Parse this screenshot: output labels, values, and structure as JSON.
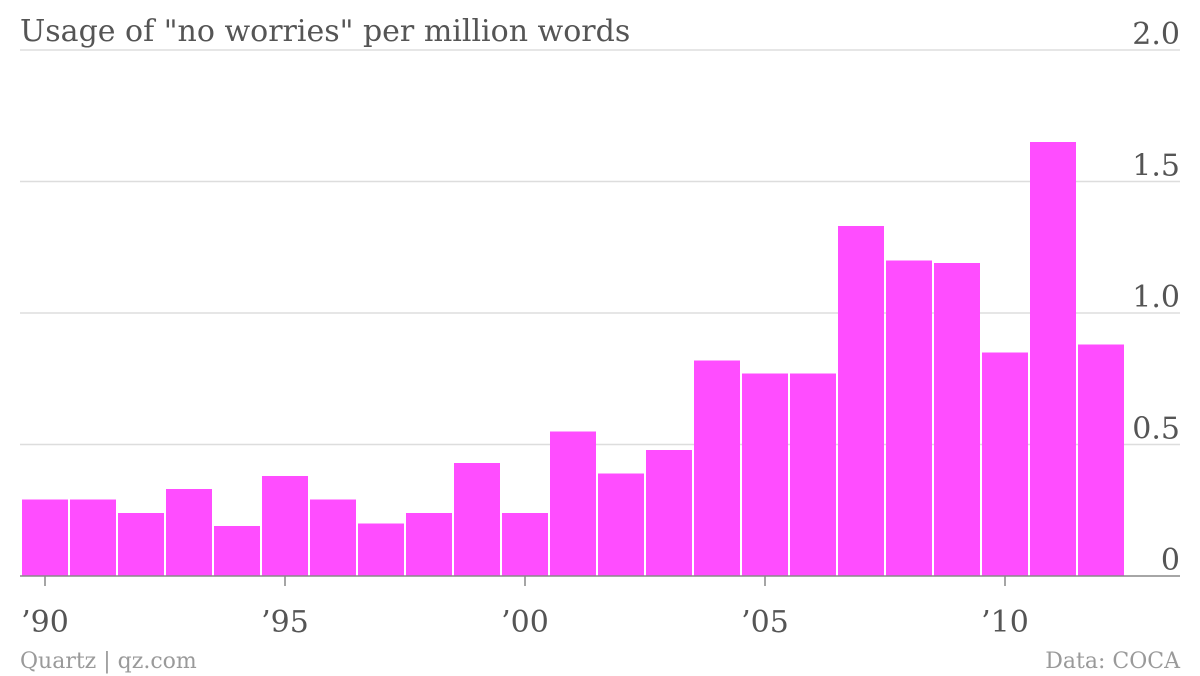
{
  "chart_data": {
    "type": "bar",
    "title": "Usage of \"no worries\" per million words",
    "xlabel": "",
    "ylabel": "",
    "categories": [
      1990,
      1991,
      1992,
      1993,
      1994,
      1995,
      1996,
      1997,
      1998,
      1999,
      2000,
      2001,
      2002,
      2003,
      2004,
      2005,
      2006,
      2007,
      2008,
      2009,
      2010,
      2011,
      2012
    ],
    "values": [
      0.29,
      0.29,
      0.24,
      0.33,
      0.19,
      0.38,
      0.29,
      0.2,
      0.24,
      0.43,
      0.24,
      0.55,
      0.39,
      0.48,
      0.82,
      0.77,
      0.77,
      1.33,
      1.2,
      1.19,
      0.85,
      1.65,
      0.88
    ],
    "ylim": [
      0,
      2.0
    ],
    "yticks": [
      {
        "value": 0,
        "label": "0"
      },
      {
        "value": 0.5,
        "label": "0.5"
      },
      {
        "value": 1.0,
        "label": "1.0"
      },
      {
        "value": 1.5,
        "label": "1.5"
      },
      {
        "value": 2.0,
        "label": "2.0"
      }
    ],
    "xticks": [
      {
        "value": 1990,
        "label": "’90"
      },
      {
        "value": 1995,
        "label": "’95"
      },
      {
        "value": 2000,
        "label": "’00"
      },
      {
        "value": 2005,
        "label": "’05"
      },
      {
        "value": 2010,
        "label": "’10"
      }
    ],
    "y_axis_position": "right",
    "grid": true,
    "legend": "none",
    "bar_color": "#ff4dff"
  },
  "footer": {
    "source_left": "Quartz | qz.com",
    "source_right": "Data: COCA"
  }
}
